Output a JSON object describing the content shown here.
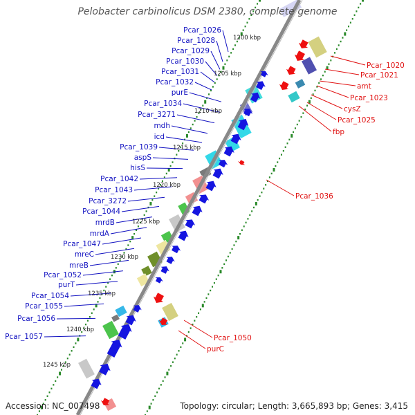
{
  "title": "Pelobacter carbinolicus DSM 2380, complete genome",
  "footer": {
    "accession": "Accession: NC_007498",
    "info": "Topology: circular; Length: 3,665,893 bp; Genes: 3,415"
  },
  "colors": {
    "forward_label": "#1010c0",
    "reverse_label": "#e01010",
    "backbone": "#888888",
    "ticks": "#2a8a2a"
  },
  "kbp_labels": [
    "1200 kbp",
    "1205 kbp",
    "1210 kbp",
    "1215 kbp",
    "1220 kbp",
    "1225 kbp",
    "1230 kbp",
    "1235 kbp",
    "1240 kbp",
    "1245 kbp"
  ],
  "forward_genes": [
    "Pcar_1026",
    "Pcar_1028",
    "Pcar_1029",
    "Pcar_1030",
    "Pcar_1031",
    "Pcar_1032",
    "purE",
    "Pcar_1034",
    "Pcar_3271",
    "mdh",
    "icd",
    "Pcar_1039",
    "aspS",
    "hisS",
    "Pcar_1042",
    "Pcar_1043",
    "Pcar_3272",
    "Pcar_1044",
    "mrdB",
    "mrdA",
    "Pcar_1047",
    "mreC",
    "mreB",
    "Pcar_1052",
    "purT",
    "Pcar_1054",
    "Pcar_1055",
    "Pcar_1056",
    "Pcar_1057"
  ],
  "reverse_genes": [
    "Pcar_1020",
    "Pcar_1021",
    "amt",
    "Pcar_1023",
    "cysZ",
    "Pcar_1025",
    "fbp",
    "Pcar_1036",
    "Pcar_1050",
    "purC"
  ]
}
